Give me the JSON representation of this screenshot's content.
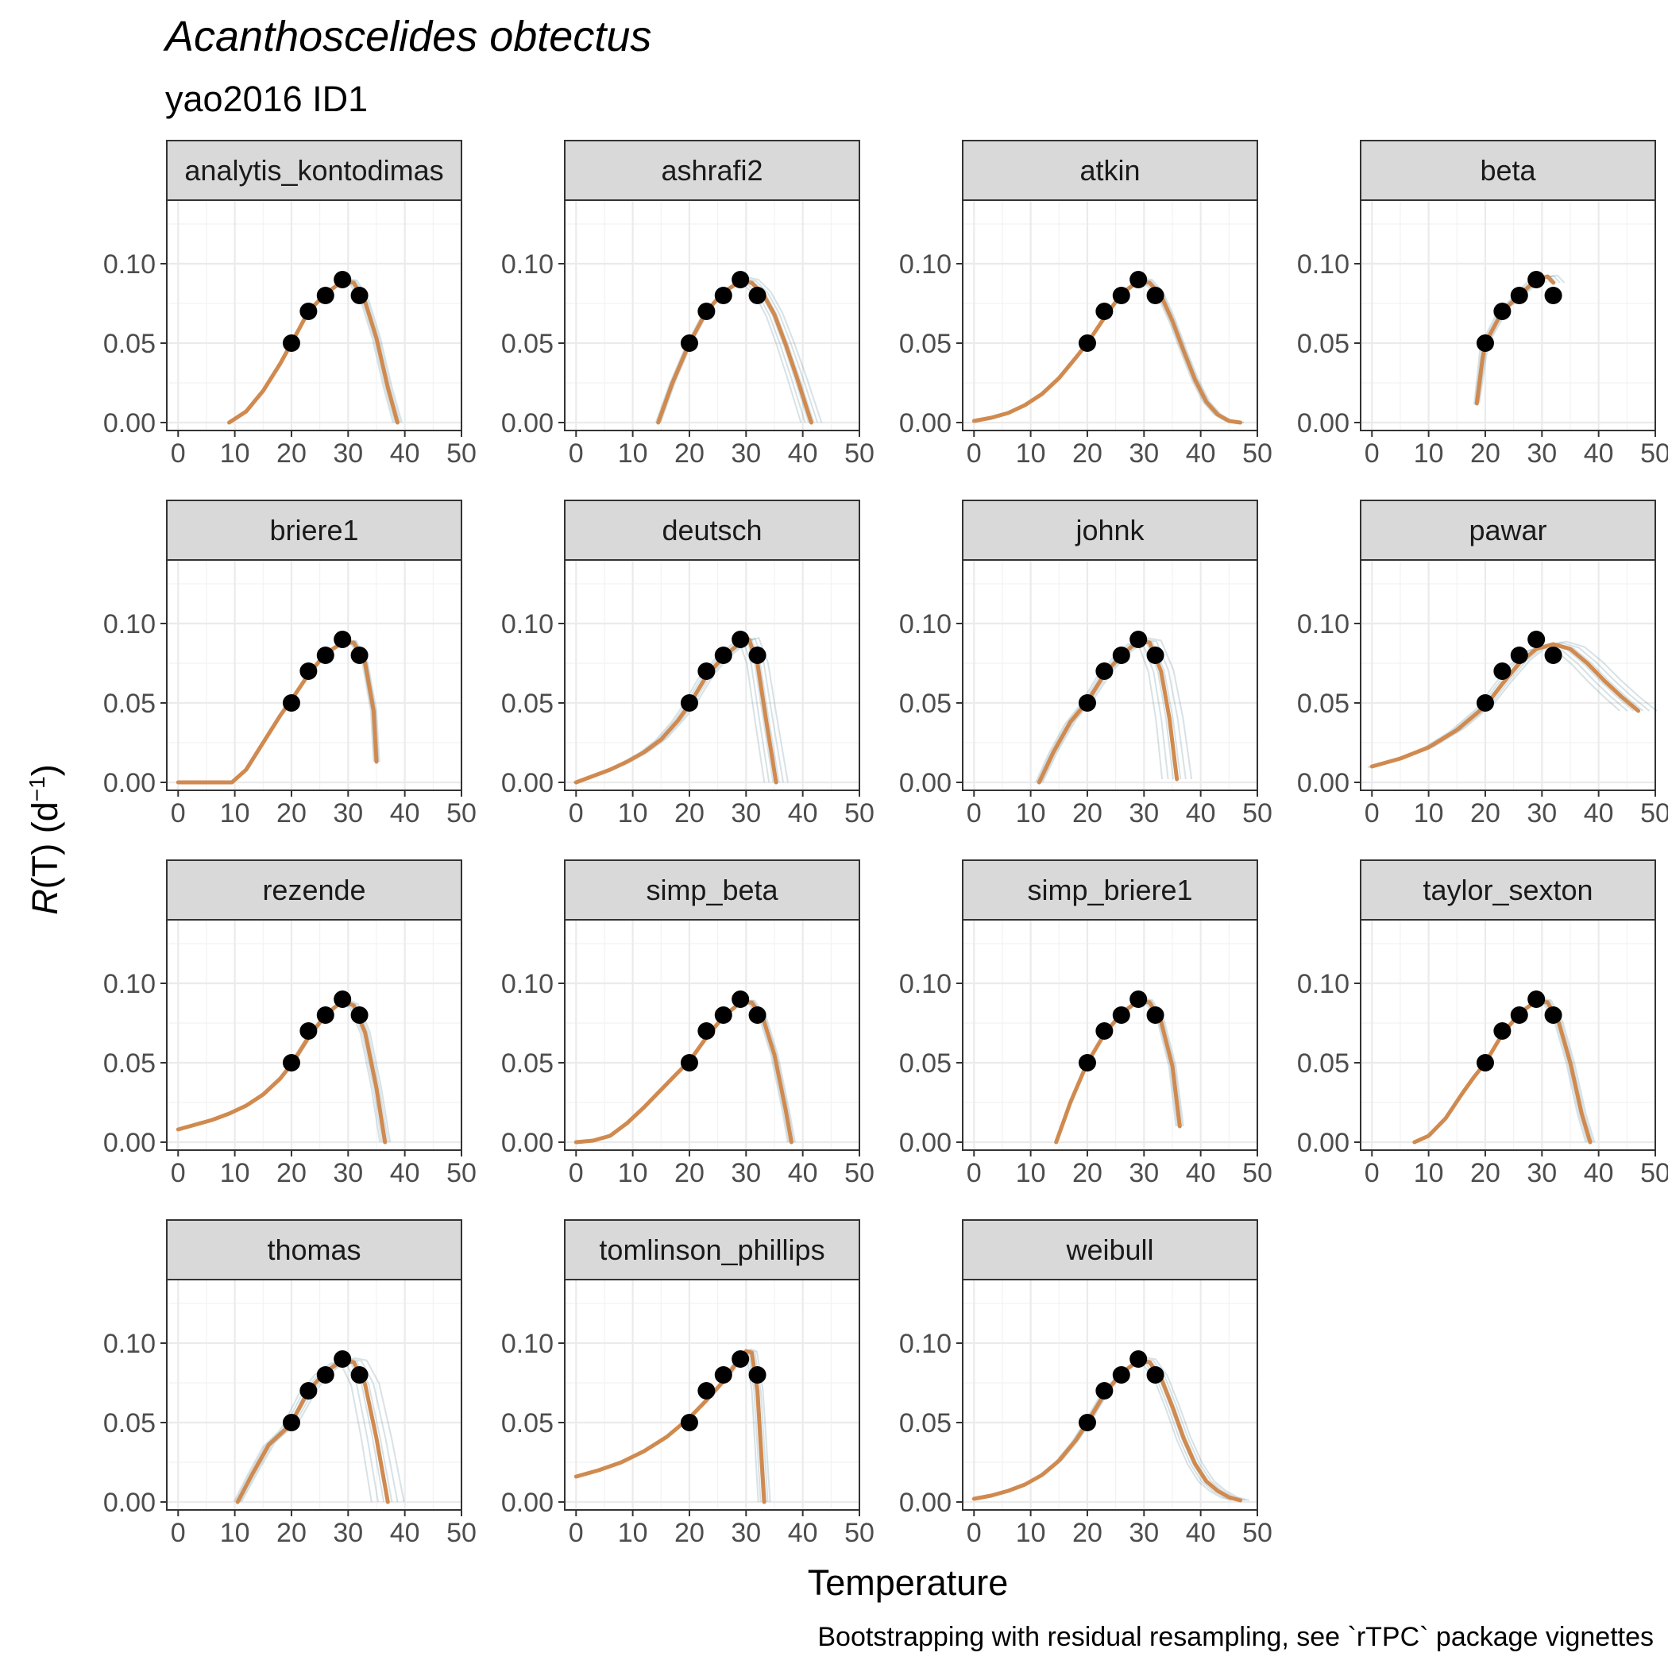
{
  "title": "Acanthoscelides obtectus",
  "subtitle": "yao2016 ID1",
  "caption": "Bootstrapping with residual resampling, see `rTPC` package vignettes",
  "colors": {
    "fit": "#d08a4f",
    "bootstrap": "#4a7a8c",
    "points": "#000000",
    "strip_fill": "#d9d9d9",
    "panel_border": "#333333",
    "grid": "#ebebeb"
  },
  "chart_data": {
    "type": "line",
    "facet_layout": "4x4 grid, 15 panels",
    "xlabel": "Temperature",
    "ylabel_prefix": "R",
    "ylabel_body": "(T) (d",
    "ylabel_sup": "−1",
    "ylabel_suffix": ")",
    "xlim": [
      -2,
      50
    ],
    "ylim": [
      -0.005,
      0.14
    ],
    "x_ticks": [
      "0",
      "10",
      "20",
      "30",
      "40",
      "50"
    ],
    "y_ticks": [
      "0.00",
      "0.05",
      "0.10"
    ],
    "grid": true,
    "points": {
      "x": [
        20,
        23,
        26,
        29,
        32
      ],
      "y": [
        0.05,
        0.07,
        0.08,
        0.09,
        0.08
      ]
    },
    "series_note": "orange line = model fit; faint blue lines = bootstrap fits",
    "panels": [
      {
        "name": "analytis_kontodimas",
        "fit": {
          "x": [
            9,
            12,
            15,
            18,
            20,
            23,
            26,
            29,
            31,
            33,
            35,
            37,
            38.7
          ],
          "y": [
            0,
            0.007,
            0.02,
            0.037,
            0.05,
            0.07,
            0.081,
            0.089,
            0.088,
            0.076,
            0.053,
            0.022,
            0
          ]
        },
        "boot_spread": 0.6
      },
      {
        "name": "ashrafi2",
        "fit": {
          "x": [
            14.5,
            17,
            20,
            23,
            26,
            29,
            31,
            33,
            35,
            37,
            39,
            41.5
          ],
          "y": [
            0,
            0.025,
            0.05,
            0.07,
            0.082,
            0.089,
            0.088,
            0.081,
            0.068,
            0.049,
            0.028,
            0
          ]
        },
        "boot_spread": 1.4
      },
      {
        "name": "atkin",
        "fit": {
          "x": [
            0,
            3,
            6,
            9,
            12,
            15,
            18,
            20,
            23,
            26,
            29,
            31,
            33,
            35,
            37,
            39,
            41,
            43,
            45,
            47
          ],
          "y": [
            0.001,
            0.003,
            0.006,
            0.011,
            0.018,
            0.028,
            0.041,
            0.05,
            0.066,
            0.081,
            0.089,
            0.088,
            0.08,
            0.064,
            0.045,
            0.027,
            0.013,
            0.005,
            0.001,
            0
          ]
        },
        "boot_spread": 0.5
      },
      {
        "name": "beta",
        "fit": {
          "x": [
            18.5,
            19.5,
            20,
            23,
            26,
            29,
            31,
            32
          ],
          "y": [
            0.012,
            0.04,
            0.05,
            0.07,
            0.08,
            0.09,
            0.092,
            0.088
          ]
        },
        "boot_spread": 1.5
      },
      {
        "name": "briere1",
        "fit": {
          "x": [
            0,
            9.5,
            12,
            15,
            18,
            20,
            23,
            26,
            29,
            31,
            33,
            34.5,
            35
          ],
          "y": [
            0,
            0,
            0.008,
            0.025,
            0.042,
            0.052,
            0.068,
            0.081,
            0.088,
            0.088,
            0.075,
            0.045,
            0.013
          ]
        },
        "boot_spread": 0.4
      },
      {
        "name": "deutsch",
        "fit": {
          "x": [
            0,
            3,
            6,
            9,
            12,
            15,
            18,
            20,
            23,
            26,
            29,
            30.5,
            32,
            33.5,
            35.3
          ],
          "y": [
            0,
            0.004,
            0.008,
            0.013,
            0.019,
            0.027,
            0.039,
            0.049,
            0.067,
            0.079,
            0.088,
            0.09,
            0.075,
            0.04,
            0
          ]
        },
        "boot_spread": 1.6
      },
      {
        "name": "johnk",
        "fit": {
          "x": [
            11.5,
            14,
            17,
            20,
            23,
            26,
            29,
            31,
            33,
            34.5,
            35.8
          ],
          "y": [
            0,
            0.019,
            0.038,
            0.051,
            0.068,
            0.08,
            0.089,
            0.088,
            0.07,
            0.04,
            0.002
          ]
        },
        "boot_spread": 2.0
      },
      {
        "name": "pawar",
        "fit": {
          "x": [
            0,
            5,
            10,
            15,
            20,
            23,
            26,
            29,
            32,
            35,
            38,
            41,
            44,
            47
          ],
          "y": [
            0.01,
            0.015,
            0.022,
            0.033,
            0.048,
            0.062,
            0.075,
            0.084,
            0.087,
            0.084,
            0.075,
            0.064,
            0.054,
            0.045
          ]
        },
        "boot_spread": 2.5
      },
      {
        "name": "rezende",
        "fit": {
          "x": [
            0,
            3,
            6,
            9,
            12,
            15,
            18,
            20,
            23,
            26,
            29,
            31,
            33,
            35,
            36.5
          ],
          "y": [
            0.008,
            0.011,
            0.014,
            0.018,
            0.023,
            0.03,
            0.04,
            0.049,
            0.066,
            0.08,
            0.089,
            0.086,
            0.069,
            0.034,
            0
          ]
        },
        "boot_spread": 0.7
      },
      {
        "name": "simp_beta",
        "fit": {
          "x": [
            0,
            3,
            6,
            9,
            12,
            15,
            18,
            20,
            23,
            26,
            29,
            31,
            33,
            35,
            37,
            38
          ],
          "y": [
            0,
            0.001,
            0.004,
            0.012,
            0.022,
            0.033,
            0.044,
            0.051,
            0.066,
            0.079,
            0.088,
            0.088,
            0.078,
            0.055,
            0.02,
            0
          ]
        },
        "boot_spread": 0.5
      },
      {
        "name": "simp_briere1",
        "fit": {
          "x": [
            14.5,
            17,
            20,
            23,
            26,
            29,
            31,
            33,
            35,
            36.3
          ],
          "y": [
            0,
            0.025,
            0.05,
            0.068,
            0.081,
            0.089,
            0.088,
            0.076,
            0.048,
            0.01
          ]
        },
        "boot_spread": 0.5
      },
      {
        "name": "taylor_sexton",
        "fit": {
          "x": [
            7.5,
            10,
            13,
            16,
            18,
            20,
            23,
            26,
            29,
            31,
            33,
            35,
            37,
            38.5
          ],
          "y": [
            0,
            0.004,
            0.015,
            0.031,
            0.041,
            0.05,
            0.068,
            0.081,
            0.089,
            0.088,
            0.075,
            0.05,
            0.018,
            0
          ]
        },
        "boot_spread": 0.6
      },
      {
        "name": "thomas",
        "fit": {
          "x": [
            10.5,
            13,
            16,
            19,
            20,
            23,
            26,
            29,
            31,
            33,
            35,
            37
          ],
          "y": [
            0,
            0.017,
            0.036,
            0.046,
            0.05,
            0.07,
            0.082,
            0.089,
            0.088,
            0.074,
            0.04,
            0
          ]
        },
        "boot_spread": 2.2
      },
      {
        "name": "tomlinson_phillips",
        "fit": {
          "x": [
            0,
            4,
            8,
            12,
            16,
            20,
            23,
            26,
            28,
            30,
            31,
            32,
            33.2
          ],
          "y": [
            0.016,
            0.02,
            0.025,
            0.032,
            0.041,
            0.053,
            0.064,
            0.076,
            0.086,
            0.095,
            0.094,
            0.07,
            0
          ]
        },
        "boot_spread": 0.8
      },
      {
        "name": "weibull",
        "fit": {
          "x": [
            0,
            3,
            6,
            9,
            12,
            15,
            18,
            20,
            23,
            26,
            29,
            31,
            33,
            35,
            37,
            39,
            41,
            43,
            45,
            47
          ],
          "y": [
            0.002,
            0.004,
            0.007,
            0.011,
            0.017,
            0.026,
            0.039,
            0.05,
            0.068,
            0.081,
            0.089,
            0.088,
            0.078,
            0.06,
            0.04,
            0.024,
            0.013,
            0.007,
            0.003,
            0.001
          ]
        },
        "boot_spread": 1.2
      }
    ]
  }
}
